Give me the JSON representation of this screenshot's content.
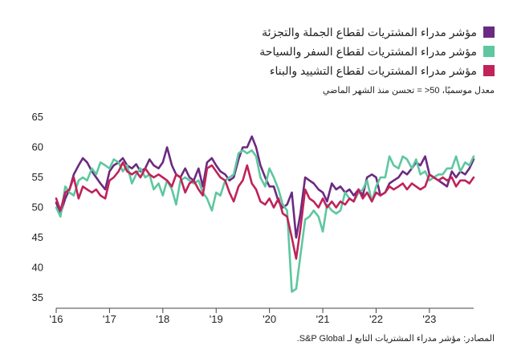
{
  "legend": {
    "items": [
      {
        "label": "مؤشر مدراء المشتريات لقطاع الجملة والتجزئة",
        "color": "#6b2a82"
      },
      {
        "label": "مؤشر مدراء المشتريات لقطاع السفر والسياحة",
        "color": "#5ec79f"
      },
      {
        "label": "مؤشر مدراء المشتريات لقطاع التشييد والبناء",
        "color": "#c0225a"
      }
    ]
  },
  "note": "معدل موسميًا، 50< = تحسن منذ الشهر الماضي",
  "source": "المصادر: مؤشر مدراء المشتريات التابع لـ S&P Global.",
  "chart_data": {
    "type": "line",
    "ylim": [
      35,
      65
    ],
    "yticks": [
      35,
      40,
      45,
      50,
      55,
      60,
      65
    ],
    "xticks": [
      "'16",
      "'17",
      "'18",
      "'19",
      "'20",
      "'21",
      "'22",
      "'23"
    ],
    "xrange": [
      2016.0,
      2023.83
    ],
    "series": [
      {
        "label": "مؤشر مدراء المشتريات لقطاع الجملة والتجزئة",
        "color": "#6b2a82",
        "points": [
          [
            2016.0,
            50.8
          ],
          [
            2016.08,
            49.0
          ],
          [
            2016.17,
            51.5
          ],
          [
            2016.25,
            53.0
          ],
          [
            2016.33,
            55.5
          ],
          [
            2016.42,
            57.0
          ],
          [
            2016.5,
            58.2
          ],
          [
            2016.58,
            57.5
          ],
          [
            2016.67,
            56.0
          ],
          [
            2016.75,
            55.0
          ],
          [
            2016.83,
            54.0
          ],
          [
            2016.92,
            53.0
          ],
          [
            2017.0,
            56.0
          ],
          [
            2017.08,
            57.0
          ],
          [
            2017.17,
            57.5
          ],
          [
            2017.25,
            58.2
          ],
          [
            2017.33,
            57.0
          ],
          [
            2017.42,
            56.5
          ],
          [
            2017.5,
            57.2
          ],
          [
            2017.58,
            56.0
          ],
          [
            2017.67,
            56.5
          ],
          [
            2017.75,
            58.0
          ],
          [
            2017.83,
            57.0
          ],
          [
            2017.92,
            56.5
          ],
          [
            2018.0,
            57.5
          ],
          [
            2018.08,
            60.0
          ],
          [
            2018.17,
            57.0
          ],
          [
            2018.25,
            55.5
          ],
          [
            2018.33,
            55.0
          ],
          [
            2018.42,
            56.5
          ],
          [
            2018.5,
            55.0
          ],
          [
            2018.58,
            54.5
          ],
          [
            2018.67,
            56.5
          ],
          [
            2018.75,
            53.5
          ],
          [
            2018.83,
            57.5
          ],
          [
            2018.92,
            58.2
          ],
          [
            2019.0,
            57.0
          ],
          [
            2019.08,
            56.0
          ],
          [
            2019.17,
            55.5
          ],
          [
            2019.25,
            54.5
          ],
          [
            2019.33,
            55.0
          ],
          [
            2019.42,
            58.0
          ],
          [
            2019.5,
            60.0
          ],
          [
            2019.58,
            60.0
          ],
          [
            2019.67,
            61.8
          ],
          [
            2019.75,
            60.0
          ],
          [
            2019.83,
            57.0
          ],
          [
            2019.92,
            55.0
          ],
          [
            2020.0,
            53.5
          ],
          [
            2020.08,
            53.5
          ],
          [
            2020.17,
            51.0
          ],
          [
            2020.25,
            50.0
          ],
          [
            2020.33,
            50.5
          ],
          [
            2020.42,
            52.5
          ],
          [
            2020.5,
            45.0
          ],
          [
            2020.58,
            49.0
          ],
          [
            2020.67,
            55.0
          ],
          [
            2020.75,
            54.5
          ],
          [
            2020.83,
            54.0
          ],
          [
            2020.92,
            53.0
          ],
          [
            2021.0,
            52.5
          ],
          [
            2021.08,
            51.0
          ],
          [
            2021.17,
            54.0
          ],
          [
            2021.25,
            53.0
          ],
          [
            2021.33,
            53.5
          ],
          [
            2021.42,
            52.5
          ],
          [
            2021.5,
            53.0
          ],
          [
            2021.58,
            52.0
          ],
          [
            2021.67,
            53.0
          ],
          [
            2021.75,
            52.0
          ],
          [
            2021.83,
            55.0
          ],
          [
            2021.92,
            55.5
          ],
          [
            2022.0,
            55.0
          ],
          [
            2022.08,
            52.0
          ],
          [
            2022.17,
            52.5
          ],
          [
            2022.25,
            54.0
          ],
          [
            2022.33,
            54.5
          ],
          [
            2022.42,
            55.0
          ],
          [
            2022.5,
            56.0
          ],
          [
            2022.58,
            55.5
          ],
          [
            2022.67,
            56.5
          ],
          [
            2022.75,
            57.5
          ],
          [
            2022.83,
            57.0
          ],
          [
            2022.92,
            58.5
          ],
          [
            2023.0,
            55.5
          ],
          [
            2023.08,
            55.0
          ],
          [
            2023.17,
            54.5
          ],
          [
            2023.25,
            54.0
          ],
          [
            2023.33,
            53.5
          ],
          [
            2023.42,
            56.0
          ],
          [
            2023.5,
            55.0
          ],
          [
            2023.58,
            56.0
          ],
          [
            2023.67,
            55.5
          ],
          [
            2023.75,
            56.5
          ],
          [
            2023.83,
            58.0
          ]
        ]
      },
      {
        "label": "مؤشر مدراء المشتريات لقطاع السفر والسياحة",
        "color": "#5ec79f",
        "points": [
          [
            2016.0,
            50.0
          ],
          [
            2016.08,
            48.5
          ],
          [
            2016.17,
            53.5
          ],
          [
            2016.25,
            52.5
          ],
          [
            2016.33,
            52.0
          ],
          [
            2016.42,
            54.5
          ],
          [
            2016.5,
            55.0
          ],
          [
            2016.58,
            54.5
          ],
          [
            2016.67,
            56.5
          ],
          [
            2016.75,
            55.5
          ],
          [
            2016.83,
            57.5
          ],
          [
            2016.92,
            57.0
          ],
          [
            2017.0,
            56.5
          ],
          [
            2017.08,
            58.0
          ],
          [
            2017.17,
            57.5
          ],
          [
            2017.25,
            56.0
          ],
          [
            2017.33,
            57.0
          ],
          [
            2017.42,
            54.0
          ],
          [
            2017.5,
            55.5
          ],
          [
            2017.58,
            56.5
          ],
          [
            2017.67,
            55.0
          ],
          [
            2017.75,
            55.5
          ],
          [
            2017.83,
            53.0
          ],
          [
            2017.92,
            54.0
          ],
          [
            2018.0,
            52.0
          ],
          [
            2018.08,
            54.5
          ],
          [
            2018.17,
            53.0
          ],
          [
            2018.25,
            50.5
          ],
          [
            2018.33,
            54.5
          ],
          [
            2018.42,
            55.0
          ],
          [
            2018.5,
            54.5
          ],
          [
            2018.58,
            54.0
          ],
          [
            2018.67,
            54.5
          ],
          [
            2018.75,
            52.5
          ],
          [
            2018.83,
            51.5
          ],
          [
            2018.92,
            49.5
          ],
          [
            2019.0,
            52.5
          ],
          [
            2019.08,
            52.0
          ],
          [
            2019.17,
            54.5
          ],
          [
            2019.25,
            55.0
          ],
          [
            2019.33,
            55.5
          ],
          [
            2019.42,
            59.0
          ],
          [
            2019.5,
            59.5
          ],
          [
            2019.58,
            59.0
          ],
          [
            2019.67,
            59.5
          ],
          [
            2019.75,
            58.5
          ],
          [
            2019.83,
            55.0
          ],
          [
            2019.92,
            53.5
          ],
          [
            2020.0,
            56.5
          ],
          [
            2020.08,
            55.0
          ],
          [
            2020.17,
            53.0
          ],
          [
            2020.25,
            50.5
          ],
          [
            2020.33,
            49.5
          ],
          [
            2020.42,
            36.0
          ],
          [
            2020.5,
            36.5
          ],
          [
            2020.58,
            42.0
          ],
          [
            2020.67,
            48.0
          ],
          [
            2020.75,
            48.5
          ],
          [
            2020.83,
            49.5
          ],
          [
            2020.92,
            48.5
          ],
          [
            2021.0,
            46.0
          ],
          [
            2021.08,
            50.5
          ],
          [
            2021.17,
            49.5
          ],
          [
            2021.25,
            49.0
          ],
          [
            2021.33,
            49.5
          ],
          [
            2021.42,
            52.5
          ],
          [
            2021.5,
            51.5
          ],
          [
            2021.58,
            51.0
          ],
          [
            2021.67,
            52.5
          ],
          [
            2021.75,
            53.0
          ],
          [
            2021.83,
            54.5
          ],
          [
            2021.92,
            51.0
          ],
          [
            2022.0,
            53.5
          ],
          [
            2022.08,
            55.0
          ],
          [
            2022.17,
            55.0
          ],
          [
            2022.25,
            58.5
          ],
          [
            2022.33,
            57.0
          ],
          [
            2022.42,
            56.5
          ],
          [
            2022.5,
            58.5
          ],
          [
            2022.58,
            58.0
          ],
          [
            2022.67,
            56.5
          ],
          [
            2022.75,
            58.0
          ],
          [
            2022.83,
            55.5
          ],
          [
            2022.92,
            56.0
          ],
          [
            2023.0,
            54.5
          ],
          [
            2023.08,
            55.0
          ],
          [
            2023.17,
            55.5
          ],
          [
            2023.25,
            55.5
          ],
          [
            2023.33,
            56.5
          ],
          [
            2023.42,
            56.5
          ],
          [
            2023.5,
            58.5
          ],
          [
            2023.58,
            56.0
          ],
          [
            2023.67,
            57.5
          ],
          [
            2023.75,
            57.0
          ],
          [
            2023.83,
            58.5
          ]
        ]
      },
      {
        "label": "مؤشر مدراء المشتريات لقطاع التشييد والبناء",
        "color": "#c0225a",
        "points": [
          [
            2016.0,
            51.5
          ],
          [
            2016.08,
            49.5
          ],
          [
            2016.17,
            52.5
          ],
          [
            2016.25,
            53.0
          ],
          [
            2016.33,
            55.0
          ],
          [
            2016.42,
            51.5
          ],
          [
            2016.5,
            53.5
          ],
          [
            2016.58,
            53.0
          ],
          [
            2016.67,
            52.5
          ],
          [
            2016.75,
            53.0
          ],
          [
            2016.83,
            52.0
          ],
          [
            2016.92,
            51.5
          ],
          [
            2017.0,
            54.5
          ],
          [
            2017.08,
            55.0
          ],
          [
            2017.17,
            56.0
          ],
          [
            2017.25,
            57.5
          ],
          [
            2017.33,
            56.0
          ],
          [
            2017.42,
            55.5
          ],
          [
            2017.5,
            56.0
          ],
          [
            2017.58,
            55.0
          ],
          [
            2017.67,
            56.5
          ],
          [
            2017.75,
            55.5
          ],
          [
            2017.83,
            55.0
          ],
          [
            2017.92,
            55.5
          ],
          [
            2018.0,
            55.0
          ],
          [
            2018.08,
            54.5
          ],
          [
            2018.17,
            53.5
          ],
          [
            2018.25,
            55.5
          ],
          [
            2018.33,
            55.0
          ],
          [
            2018.42,
            52.5
          ],
          [
            2018.5,
            54.0
          ],
          [
            2018.58,
            54.5
          ],
          [
            2018.67,
            53.0
          ],
          [
            2018.75,
            52.0
          ],
          [
            2018.83,
            56.5
          ],
          [
            2018.92,
            57.0
          ],
          [
            2019.0,
            56.0
          ],
          [
            2019.08,
            55.0
          ],
          [
            2019.17,
            54.5
          ],
          [
            2019.25,
            52.5
          ],
          [
            2019.33,
            51.0
          ],
          [
            2019.42,
            53.5
          ],
          [
            2019.5,
            54.5
          ],
          [
            2019.58,
            57.0
          ],
          [
            2019.67,
            54.0
          ],
          [
            2019.75,
            53.0
          ],
          [
            2019.83,
            51.0
          ],
          [
            2019.92,
            50.5
          ],
          [
            2020.0,
            51.5
          ],
          [
            2020.08,
            50.0
          ],
          [
            2020.17,
            51.5
          ],
          [
            2020.25,
            49.0
          ],
          [
            2020.33,
            48.5
          ],
          [
            2020.42,
            45.0
          ],
          [
            2020.5,
            41.5
          ],
          [
            2020.58,
            46.5
          ],
          [
            2020.67,
            53.0
          ],
          [
            2020.75,
            51.5
          ],
          [
            2020.83,
            51.0
          ],
          [
            2020.92,
            50.0
          ],
          [
            2021.0,
            51.5
          ],
          [
            2021.08,
            50.0
          ],
          [
            2021.17,
            51.0
          ],
          [
            2021.25,
            50.0
          ],
          [
            2021.33,
            51.0
          ],
          [
            2021.42,
            50.5
          ],
          [
            2021.5,
            51.5
          ],
          [
            2021.58,
            51.0
          ],
          [
            2021.67,
            53.0
          ],
          [
            2021.75,
            51.5
          ],
          [
            2021.83,
            52.5
          ],
          [
            2021.92,
            51.0
          ],
          [
            2022.0,
            52.5
          ],
          [
            2022.08,
            52.0
          ],
          [
            2022.17,
            52.5
          ],
          [
            2022.25,
            53.5
          ],
          [
            2022.33,
            53.0
          ],
          [
            2022.42,
            53.5
          ],
          [
            2022.5,
            54.0
          ],
          [
            2022.58,
            53.0
          ],
          [
            2022.67,
            54.0
          ],
          [
            2022.75,
            53.5
          ],
          [
            2022.83,
            53.0
          ],
          [
            2022.92,
            53.5
          ],
          [
            2023.0,
            55.5
          ],
          [
            2023.08,
            55.0
          ],
          [
            2023.17,
            54.5
          ],
          [
            2023.25,
            55.0
          ],
          [
            2023.33,
            54.5
          ],
          [
            2023.42,
            55.0
          ],
          [
            2023.5,
            53.5
          ],
          [
            2023.58,
            54.5
          ],
          [
            2023.67,
            54.5
          ],
          [
            2023.75,
            54.0
          ],
          [
            2023.83,
            55.0
          ]
        ]
      }
    ]
  }
}
